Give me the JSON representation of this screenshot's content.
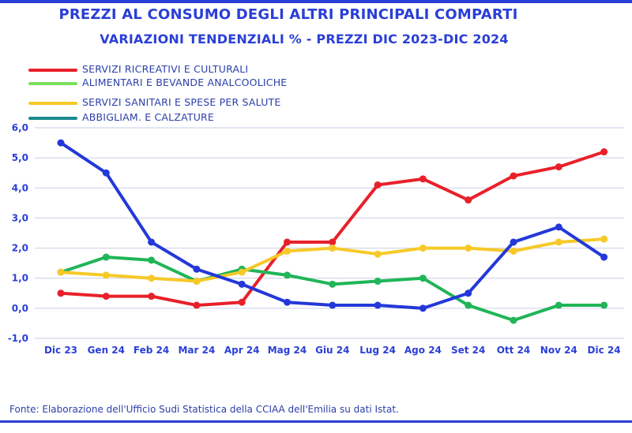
{
  "title_line1": "PREZZI AL CONSUMO DEGLI ALTRI PRINCIPALI COMPARTI",
  "title_line2": "VARIAZIONI  TENDENZIALI %  - PREZZI DIC 2023-DIC 2024",
  "source": "Fonte: Elaborazione dell'Ufficio Sudi Statistica della CCIAA dell'Emilia su dati Istat.",
  "legend": [
    {
      "label": " SERVIZI RICREATIVI E CULTURALI",
      "color": "#e8202a"
    },
    {
      "label": "ALIMENTARI E BEVANDE ANALCOOLICHE",
      "color": "#7be05a"
    },
    {
      "label": "SERVIZI SANITARI E SPESE PER SALUTE",
      "color": "#f7c928"
    },
    {
      "label": "ABBIGLIAM.  E CALZATURE",
      "color": "#1b8a8e"
    }
  ],
  "chart_data": {
    "type": "line",
    "categories": [
      "Dic 23",
      "Gen 24",
      "Feb 24",
      "Mar 24",
      "Apr 24",
      "Mag 24",
      "Giu 24",
      "Lug 24",
      "Ago 24",
      "Set 24",
      "Ott 24",
      "Nov 24",
      "Dic 24"
    ],
    "ylim": [
      -1.0,
      6.0
    ],
    "yticks": [
      "-1,0",
      "0,0",
      "1,0",
      "2,0",
      "3,0",
      "4,0",
      "5,0",
      "6,0"
    ],
    "grid": true,
    "series": [
      {
        "color": "#e8202a",
        "values": [
          0.5,
          0.4,
          0.4,
          0.1,
          0.2,
          2.2,
          2.2,
          4.1,
          4.3,
          3.6,
          4.4,
          4.7,
          5.2
        ]
      },
      {
        "color": "#20b558",
        "values": [
          1.2,
          1.7,
          1.6,
          0.9,
          1.3,
          1.1,
          0.8,
          0.9,
          1.0,
          0.1,
          -0.4,
          0.1,
          0.1
        ]
      },
      {
        "color": "#f7c928",
        "values": [
          1.2,
          1.1,
          1.0,
          0.9,
          1.2,
          1.9,
          2.0,
          1.8,
          2.0,
          2.0,
          1.9,
          2.2,
          2.3
        ]
      },
      {
        "color": "#2438d9",
        "values": [
          5.5,
          4.5,
          2.2,
          1.3,
          0.8,
          0.2,
          0.1,
          0.1,
          0.0,
          0.5,
          2.2,
          2.7,
          1.7
        ]
      }
    ]
  }
}
